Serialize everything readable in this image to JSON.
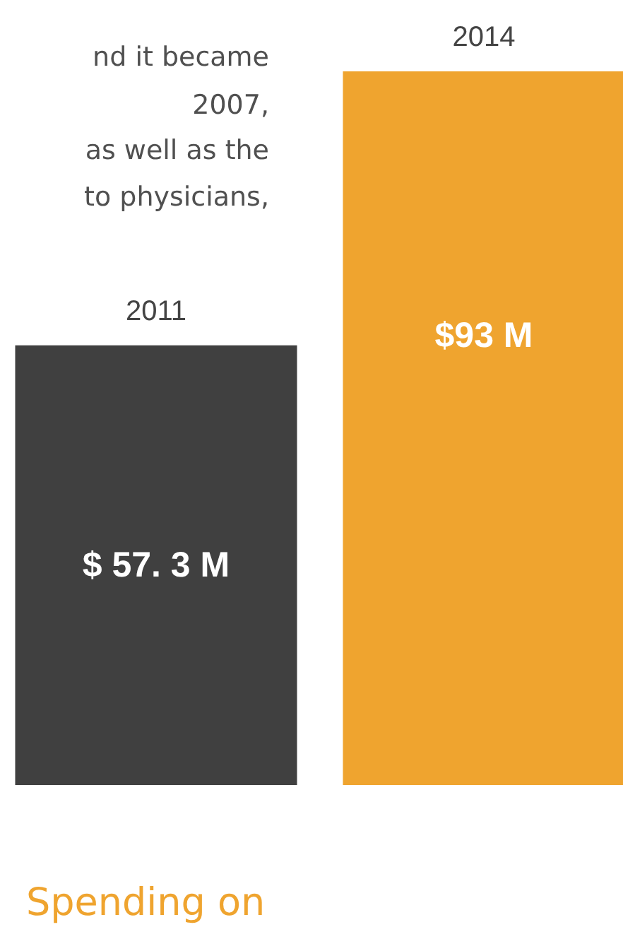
{
  "chart_data": {
    "type": "bar",
    "categories": [
      "2011",
      "2014"
    ],
    "values": [
      57.3,
      93
    ],
    "colors": [
      "#404040",
      "#efa42f"
    ],
    "value_labels": [
      "$ 57. 3 M",
      "$93 M"
    ],
    "annotations": [
      "nd it became",
      "2007,",
      "as well as the",
      "to physicians,",
      "Spending on"
    ]
  }
}
